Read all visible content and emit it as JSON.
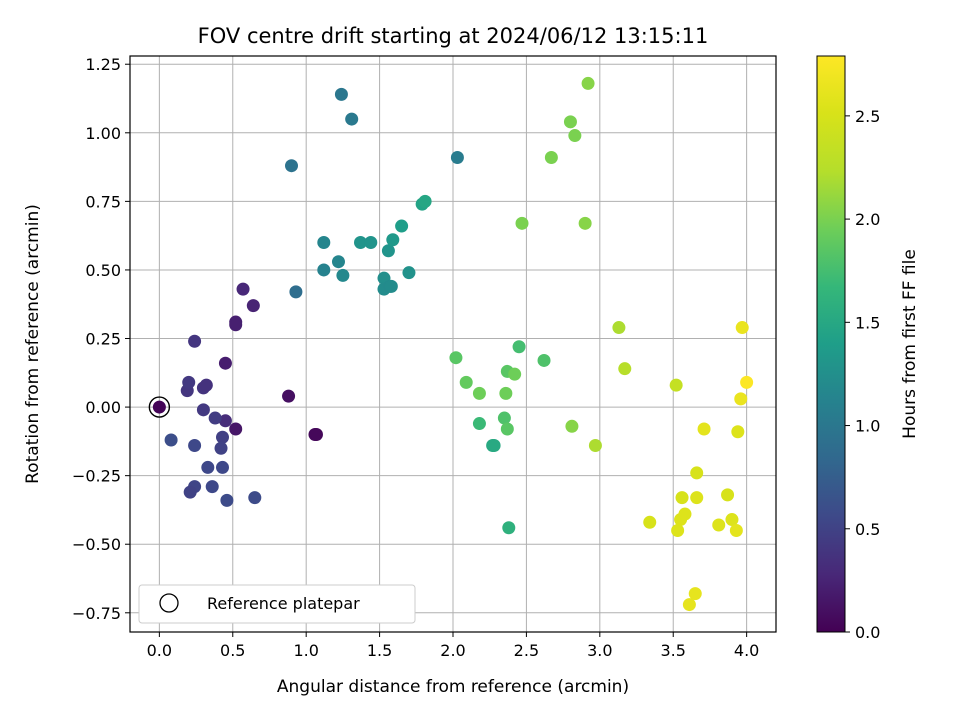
{
  "chart_data": {
    "type": "scatter",
    "title": "FOV centre drift starting at 2024/06/12 13:15:11",
    "xlabel": "Angular distance from reference (arcmin)",
    "ylabel": "Rotation from reference (arcmin)",
    "xlim": [
      -0.2,
      4.2
    ],
    "ylim": [
      -0.82,
      1.28
    ],
    "x_ticks": [
      0.0,
      0.5,
      1.0,
      1.5,
      2.0,
      2.5,
      3.0,
      3.5,
      4.0
    ],
    "y_ticks": [
      -0.75,
      -0.5,
      -0.25,
      0.0,
      0.25,
      0.5,
      0.75,
      1.0,
      1.25
    ],
    "x_tick_labels": [
      "0.0",
      "0.5",
      "1.0",
      "1.5",
      "2.0",
      "2.5",
      "3.0",
      "3.5",
      "4.0"
    ],
    "y_tick_labels": [
      "−0.75",
      "−0.50",
      "−0.25",
      "0.00",
      "0.25",
      "0.50",
      "0.75",
      "1.00",
      "1.25"
    ],
    "grid": true,
    "legend": {
      "position": "lower-left",
      "entries": [
        "Reference platepar"
      ]
    },
    "reference_point": {
      "x": 0.0,
      "y": 0.0
    },
    "colorbar": {
      "label": "Hours from first FF file",
      "colormap": "viridis",
      "range": [
        0.0,
        2.79
      ],
      "ticks": [
        0.0,
        0.5,
        1.0,
        1.5,
        2.0,
        2.5
      ],
      "tick_labels": [
        "0.0",
        "0.5",
        "1.0",
        "1.5",
        "2.0",
        "2.5"
      ]
    },
    "points": [
      {
        "x": 0.0,
        "y": 0.0,
        "c": 0.02
      },
      {
        "x": 0.52,
        "y": -0.08,
        "c": 0.15
      },
      {
        "x": 0.45,
        "y": 0.16,
        "c": 0.2
      },
      {
        "x": 0.52,
        "y": 0.3,
        "c": 0.22
      },
      {
        "x": 0.52,
        "y": 0.31,
        "c": 0.22
      },
      {
        "x": 0.64,
        "y": 0.37,
        "c": 0.25
      },
      {
        "x": 0.57,
        "y": 0.43,
        "c": 0.28
      },
      {
        "x": 0.88,
        "y": 0.04,
        "c": 0.1
      },
      {
        "x": 1.06,
        "y": -0.1,
        "c": 0.05
      },
      {
        "x": 1.07,
        "y": -0.1,
        "c": 0.05
      },
      {
        "x": 0.45,
        "y": -0.05,
        "c": 0.32
      },
      {
        "x": 0.3,
        "y": 0.07,
        "c": 0.38
      },
      {
        "x": 0.32,
        "y": 0.08,
        "c": 0.36
      },
      {
        "x": 0.19,
        "y": 0.06,
        "c": 0.4
      },
      {
        "x": 0.2,
        "y": 0.09,
        "c": 0.42
      },
      {
        "x": 0.24,
        "y": 0.24,
        "c": 0.4
      },
      {
        "x": 0.3,
        "y": -0.01,
        "c": 0.42
      },
      {
        "x": 0.38,
        "y": -0.04,
        "c": 0.45
      },
      {
        "x": 0.43,
        "y": -0.11,
        "c": 0.48
      },
      {
        "x": 0.42,
        "y": -0.15,
        "c": 0.5
      },
      {
        "x": 0.33,
        "y": -0.22,
        "c": 0.55
      },
      {
        "x": 0.43,
        "y": -0.22,
        "c": 0.55
      },
      {
        "x": 0.24,
        "y": -0.14,
        "c": 0.55
      },
      {
        "x": 0.08,
        "y": -0.12,
        "c": 0.6
      },
      {
        "x": 0.24,
        "y": -0.29,
        "c": 0.52
      },
      {
        "x": 0.21,
        "y": -0.31,
        "c": 0.5
      },
      {
        "x": 0.36,
        "y": -0.29,
        "c": 0.55
      },
      {
        "x": 0.46,
        "y": -0.34,
        "c": 0.58
      },
      {
        "x": 0.65,
        "y": -0.33,
        "c": 0.58
      },
      {
        "x": 0.93,
        "y": 0.42,
        "c": 0.9
      },
      {
        "x": 0.9,
        "y": 0.88,
        "c": 0.95
      },
      {
        "x": 1.24,
        "y": 1.14,
        "c": 1.0
      },
      {
        "x": 1.31,
        "y": 1.05,
        "c": 1.02
      },
      {
        "x": 2.03,
        "y": 0.91,
        "c": 1.05
      },
      {
        "x": 1.12,
        "y": 0.6,
        "c": 1.15
      },
      {
        "x": 1.12,
        "y": 0.5,
        "c": 1.12
      },
      {
        "x": 1.22,
        "y": 0.53,
        "c": 1.15
      },
      {
        "x": 1.25,
        "y": 0.48,
        "c": 1.18
      },
      {
        "x": 1.37,
        "y": 0.6,
        "c": 1.3
      },
      {
        "x": 1.44,
        "y": 0.6,
        "c": 1.3
      },
      {
        "x": 1.53,
        "y": 0.47,
        "c": 1.25
      },
      {
        "x": 1.53,
        "y": 0.43,
        "c": 1.22
      },
      {
        "x": 1.57,
        "y": 0.44,
        "c": 1.2
      },
      {
        "x": 1.58,
        "y": 0.44,
        "c": 1.22
      },
      {
        "x": 1.56,
        "y": 0.57,
        "c": 1.3
      },
      {
        "x": 1.59,
        "y": 0.61,
        "c": 1.35
      },
      {
        "x": 1.7,
        "y": 0.49,
        "c": 1.28
      },
      {
        "x": 1.65,
        "y": 0.66,
        "c": 1.4
      },
      {
        "x": 1.79,
        "y": 0.74,
        "c": 1.45
      },
      {
        "x": 1.81,
        "y": 0.75,
        "c": 1.48
      },
      {
        "x": 2.27,
        "y": -0.14,
        "c": 1.52
      },
      {
        "x": 2.28,
        "y": -0.14,
        "c": 1.52
      },
      {
        "x": 2.38,
        "y": -0.44,
        "c": 1.6
      },
      {
        "x": 2.02,
        "y": 0.18,
        "c": 1.85
      },
      {
        "x": 2.09,
        "y": 0.09,
        "c": 1.9
      },
      {
        "x": 2.18,
        "y": 0.05,
        "c": 1.95
      },
      {
        "x": 2.18,
        "y": -0.06,
        "c": 1.7
      },
      {
        "x": 2.35,
        "y": -0.04,
        "c": 1.8
      },
      {
        "x": 2.37,
        "y": -0.08,
        "c": 1.85
      },
      {
        "x": 2.37,
        "y": 0.13,
        "c": 1.85
      },
      {
        "x": 2.42,
        "y": 0.12,
        "c": 1.95
      },
      {
        "x": 2.36,
        "y": 0.05,
        "c": 1.95
      },
      {
        "x": 2.45,
        "y": 0.22,
        "c": 1.75
      },
      {
        "x": 2.62,
        "y": 0.17,
        "c": 1.8
      },
      {
        "x": 2.47,
        "y": 0.67,
        "c": 2.0
      },
      {
        "x": 2.67,
        "y": 0.91,
        "c": 2.0
      },
      {
        "x": 2.8,
        "y": 1.04,
        "c": 2.0
      },
      {
        "x": 2.83,
        "y": 0.99,
        "c": 2.0
      },
      {
        "x": 2.92,
        "y": 1.18,
        "c": 2.05
      },
      {
        "x": 2.9,
        "y": 0.67,
        "c": 2.05
      },
      {
        "x": 2.81,
        "y": -0.07,
        "c": 2.05
      },
      {
        "x": 2.97,
        "y": -0.14,
        "c": 2.2
      },
      {
        "x": 3.13,
        "y": 0.29,
        "c": 2.2
      },
      {
        "x": 3.17,
        "y": 0.14,
        "c": 2.25
      },
      {
        "x": 3.52,
        "y": 0.08,
        "c": 2.35
      },
      {
        "x": 3.34,
        "y": -0.42,
        "c": 2.5
      },
      {
        "x": 3.53,
        "y": -0.45,
        "c": 2.55
      },
      {
        "x": 3.55,
        "y": -0.41,
        "c": 2.55
      },
      {
        "x": 3.58,
        "y": -0.39,
        "c": 2.55
      },
      {
        "x": 3.56,
        "y": -0.33,
        "c": 2.5
      },
      {
        "x": 3.66,
        "y": -0.33,
        "c": 2.55
      },
      {
        "x": 3.66,
        "y": -0.24,
        "c": 2.5
      },
      {
        "x": 3.71,
        "y": -0.08,
        "c": 2.6
      },
      {
        "x": 3.61,
        "y": -0.72,
        "c": 2.62
      },
      {
        "x": 3.65,
        "y": -0.68,
        "c": 2.62
      },
      {
        "x": 3.81,
        "y": -0.43,
        "c": 2.55
      },
      {
        "x": 3.87,
        "y": -0.32,
        "c": 2.5
      },
      {
        "x": 3.9,
        "y": -0.41,
        "c": 2.55
      },
      {
        "x": 3.93,
        "y": -0.45,
        "c": 2.6
      },
      {
        "x": 3.94,
        "y": -0.09,
        "c": 2.55
      },
      {
        "x": 3.96,
        "y": 0.03,
        "c": 2.65
      },
      {
        "x": 3.97,
        "y": 0.29,
        "c": 2.65
      },
      {
        "x": 4.0,
        "y": 0.09,
        "c": 2.78
      }
    ]
  }
}
